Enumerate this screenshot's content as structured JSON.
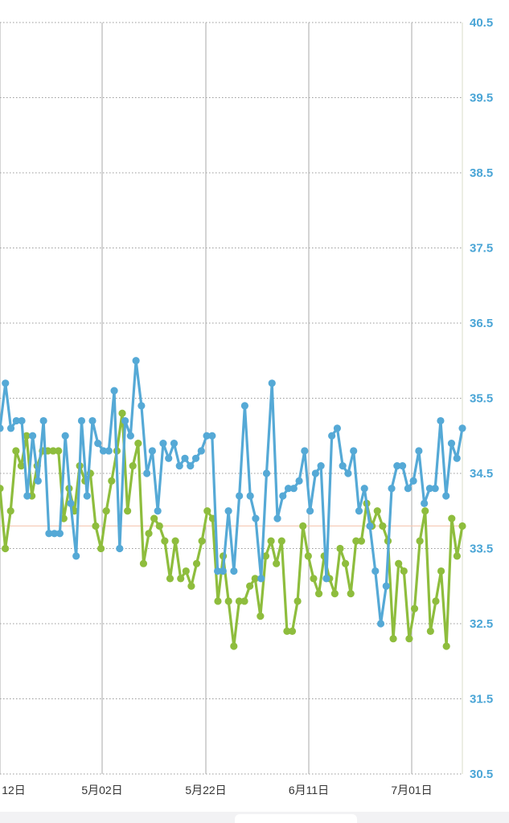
{
  "colors": {
    "series_blue": "#55a9d6",
    "series_green": "#8ebd3d",
    "reference_line": "#f6c9b4",
    "y_tick_text": "#4aa5d6",
    "grid": "#9a9a9a"
  },
  "chart_data": {
    "type": "line",
    "title": "",
    "xlabel": "",
    "ylabel": "",
    "x_tick_labels": [
      "12日",
      "5月02日",
      "5月22日",
      "6月11日",
      "7月01日"
    ],
    "y_ticks": [
      40.5,
      39.5,
      38.5,
      37.5,
      36.5,
      35.5,
      34.5,
      33.5,
      32.5,
      31.5,
      30.5
    ],
    "ylim": [
      30.5,
      40.5
    ],
    "y_axis_position": "right",
    "grid": true,
    "reference_line_value": 33.8,
    "series": [
      {
        "color": "#55a9d6",
        "values": [
          35.1,
          35.7,
          35.1,
          35.2,
          35.2,
          34.2,
          35.0,
          34.4,
          35.2,
          33.7,
          33.7,
          33.7,
          35.0,
          34.1,
          33.4,
          35.2,
          34.2,
          35.2,
          34.9,
          34.8,
          34.8,
          35.6,
          33.5,
          35.2,
          35.0,
          36.0,
          35.4,
          34.5,
          34.8,
          34.0,
          34.9,
          34.7,
          34.9,
          34.6,
          34.7,
          34.6,
          34.7,
          34.8,
          35.0,
          35.0,
          33.2,
          33.2,
          34.0,
          33.2,
          34.2,
          35.4,
          34.2,
          33.9,
          33.1,
          34.5,
          35.7,
          33.9,
          34.2,
          34.3,
          34.3,
          34.4,
          34.8,
          34.0,
          34.5,
          34.6,
          33.1,
          35.0,
          35.1,
          34.6,
          34.5,
          34.8,
          34.0,
          34.3,
          33.8,
          33.2,
          32.5,
          33.0,
          34.3,
          34.6,
          34.6,
          34.3,
          34.4,
          34.8,
          34.1,
          34.3,
          34.3,
          35.2,
          34.2,
          34.9,
          34.7,
          35.1
        ]
      },
      {
        "color": "#8ebd3d",
        "values": [
          34.3,
          33.5,
          34.0,
          34.8,
          34.6,
          35.0,
          34.2,
          34.6,
          34.8,
          34.8,
          34.8,
          34.8,
          33.9,
          34.3,
          34.0,
          34.6,
          34.4,
          34.5,
          33.8,
          33.5,
          34.0,
          34.4,
          34.8,
          35.3,
          34.0,
          34.6,
          34.9,
          33.3,
          33.7,
          33.9,
          33.8,
          33.6,
          33.1,
          33.6,
          33.1,
          33.2,
          33.0,
          33.3,
          33.6,
          34.0,
          33.9,
          32.8,
          33.4,
          32.8,
          32.2,
          32.8,
          32.8,
          33.0,
          33.1,
          32.6,
          33.4,
          33.6,
          33.3,
          33.6,
          32.4,
          32.4,
          32.8,
          33.8,
          33.4,
          33.1,
          32.9,
          33.4,
          33.1,
          32.9,
          33.5,
          33.3,
          32.9,
          33.6,
          33.6,
          34.1,
          33.8,
          34.0,
          33.8,
          33.6,
          32.3,
          33.3,
          33.2,
          32.3,
          32.7,
          33.6,
          34.0,
          32.4,
          32.8,
          33.2,
          32.2,
          33.9,
          33.4,
          33.8
        ]
      }
    ]
  }
}
